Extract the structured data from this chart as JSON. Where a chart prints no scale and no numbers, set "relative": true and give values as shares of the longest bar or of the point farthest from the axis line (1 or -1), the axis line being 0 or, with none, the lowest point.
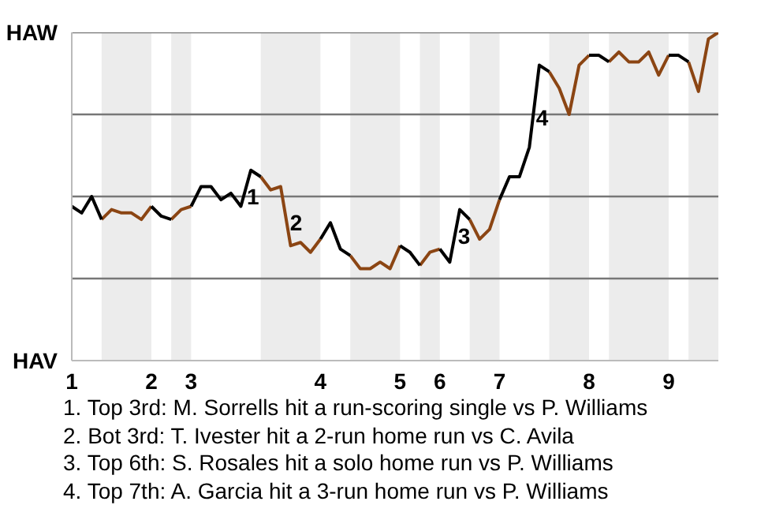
{
  "chart_data": {
    "type": "line",
    "relative": true,
    "categories": [
      "1",
      null,
      null,
      null,
      null,
      null,
      null,
      null,
      "2",
      null,
      null,
      null,
      "3",
      null,
      null,
      null,
      null,
      null,
      null,
      null,
      null,
      null,
      null,
      null,
      null,
      "4",
      null,
      null,
      null,
      null,
      null,
      null,
      null,
      "5",
      null,
      null,
      null,
      "6",
      null,
      null,
      null,
      null,
      null,
      "7",
      null,
      null,
      null,
      null,
      null,
      null,
      null,
      null,
      "8",
      null,
      null,
      null,
      null,
      null,
      null,
      null,
      "9",
      null,
      null,
      null,
      null,
      null
    ],
    "series": [
      {
        "color": "#000000",
        "values": [
          0.47,
          0.45,
          0.5,
          0.43,
          null,
          null,
          null,
          null,
          0.47,
          0.44,
          0.43,
          null,
          0.47,
          0.53,
          0.53,
          0.49,
          0.51,
          0.47,
          0.58,
          0.56,
          null,
          null,
          null,
          null,
          null,
          0.37,
          0.42,
          0.34,
          0.32,
          null,
          null,
          null,
          null,
          0.35,
          0.33,
          0.29,
          null,
          0.34,
          0.3,
          0.46,
          0.43,
          null,
          null,
          0.49,
          0.56,
          0.56,
          0.65,
          0.9,
          0.88,
          null,
          null,
          null,
          0.93,
          0.93,
          0.91,
          null,
          null,
          null,
          null,
          null,
          0.93,
          0.93,
          0.91,
          null,
          null,
          null
        ]
      },
      {
        "color": "#8b4513",
        "values": [
          null,
          null,
          null,
          0.43,
          0.46,
          0.45,
          0.45,
          0.43,
          0.47,
          null,
          0.43,
          0.46,
          0.47,
          null,
          null,
          null,
          null,
          null,
          null,
          0.56,
          0.52,
          0.53,
          0.35,
          0.36,
          0.33,
          0.37,
          null,
          null,
          0.32,
          0.28,
          0.28,
          0.3,
          0.28,
          0.35,
          null,
          0.29,
          0.33,
          0.34,
          null,
          null,
          0.43,
          0.37,
          0.4,
          0.49,
          null,
          null,
          null,
          null,
          0.88,
          0.83,
          0.75,
          0.9,
          0.93,
          null,
          0.91,
          0.94,
          0.91,
          0.91,
          0.94,
          0.87,
          0.93,
          null,
          0.91,
          0.82,
          0.98,
          1.0
        ]
      }
    ],
    "ref_lines": [
      {
        "axis": "y",
        "value": 0.25,
        "color": "#777777"
      },
      {
        "axis": "y",
        "value": 0.5,
        "color": "#777777"
      },
      {
        "axis": "y",
        "value": 0.75,
        "color": "#777777"
      },
      {
        "axis": "y",
        "value": 1.0,
        "color": "#777777"
      }
    ],
    "annotations": [
      "HAW",
      "HAV",
      {
        "text": "1",
        "y": 0.5
      },
      {
        "text": "2",
        "y": 0.42
      },
      {
        "text": "3",
        "y": 0.38
      },
      {
        "text": "4",
        "y": 0.74
      },
      "1. Top 3rd: M. Sorrells hit a run-scoring single vs P. Williams",
      "2. Bot 3rd: T. Ivester hit a 2-run home run vs C. Avila",
      "3. Top 6th: S. Rosales hit a solo home run vs P. Williams",
      "4. Top 7th: A. Garcia hit a 3-run home run vs P. Williams"
    ]
  }
}
